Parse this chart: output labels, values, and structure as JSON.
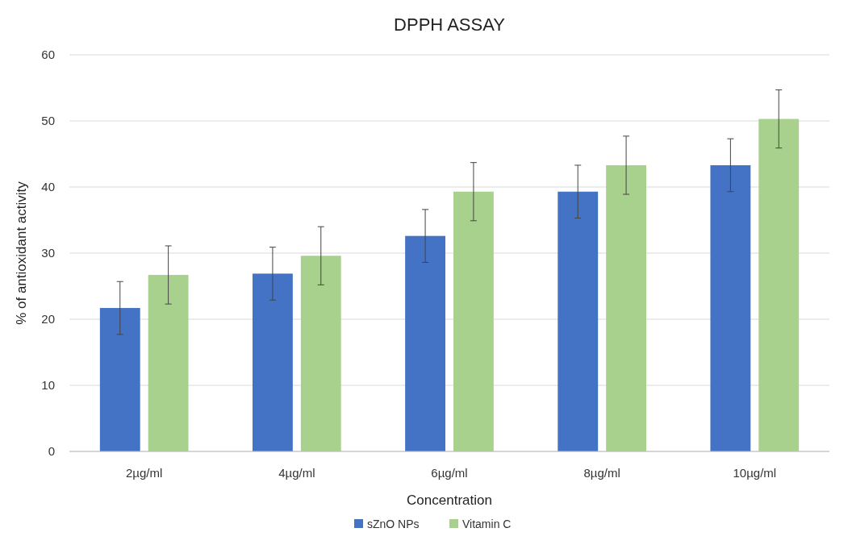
{
  "chart_data": {
    "type": "bar",
    "title": "DPPH ASSAY",
    "xlabel": "Concentration",
    "ylabel": "% of antioxidant activity",
    "categories": [
      "2µg/ml",
      "4µg/ml",
      "6µg/ml",
      "8µg/ml",
      "10µg/ml"
    ],
    "series": [
      {
        "name": "sZnO NPs",
        "color": "#4472c4",
        "values": [
          21.7,
          26.9,
          32.6,
          39.3,
          43.3
        ],
        "errors": [
          4,
          4,
          4,
          4,
          4
        ]
      },
      {
        "name": "Vitamin C",
        "color": "#a9d18e",
        "values": [
          26.7,
          29.6,
          39.3,
          43.3,
          50.3
        ],
        "errors": [
          4.4,
          4.4,
          4.4,
          4.4,
          4.4
        ]
      }
    ],
    "ylim": [
      0,
      60
    ],
    "yticks": [
      0,
      10,
      20,
      30,
      40,
      50,
      60
    ],
    "grid": "y",
    "legend": "bottom"
  }
}
